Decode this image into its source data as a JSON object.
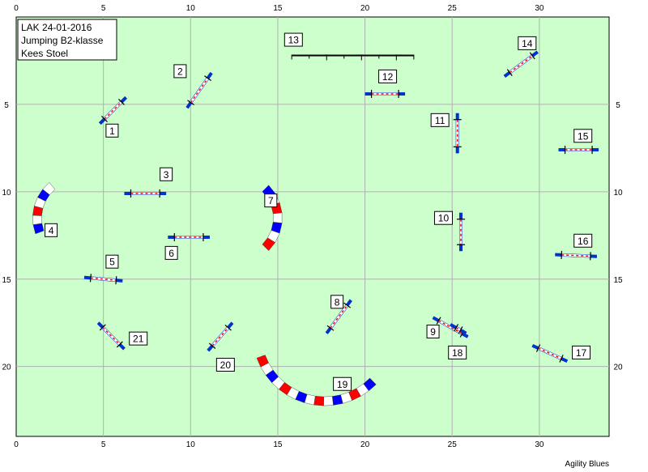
{
  "course": {
    "info_lines": [
      "LAK 24-01-2016",
      "Jumping B2-klasse",
      "Kees Stoel"
    ],
    "footer": "Agility Blues",
    "x_ticks": [
      0,
      5,
      10,
      15,
      20,
      25,
      30
    ],
    "y_ticks": [
      5,
      10,
      15,
      20
    ],
    "x_range": [
      0,
      34
    ],
    "y_range": [
      0,
      24
    ],
    "colors": {
      "field": "#ccffcc",
      "grid": "#b0b0b0",
      "bar_blue": "#0033cc",
      "tunnel_red": "#ff0000",
      "tunnel_white": "#ffffff",
      "tunnel_blue": "#0000ff"
    }
  },
  "chart_data": {
    "type": "diagram",
    "obstacles": [
      {
        "number": "1",
        "kind": "hurdle",
        "x1": 4.8,
        "y1": 6.1,
        "x2": 6.3,
        "y2": 4.6,
        "label_x": 5.5,
        "label_y": 6.5
      },
      {
        "number": "2",
        "kind": "hurdle",
        "x1": 9.8,
        "y1": 5.2,
        "x2": 11.2,
        "y2": 3.2,
        "label_x": 9.4,
        "label_y": 3.1
      },
      {
        "number": "3",
        "kind": "hurdle",
        "x1": 6.2,
        "y1": 10.1,
        "x2": 8.6,
        "y2": 10.1,
        "label_x": 8.6,
        "label_y": 9.0
      },
      {
        "number": "4",
        "kind": "tunnel",
        "cx": 3.6,
        "cy": 11.5,
        "r": 2.4,
        "a0": 160,
        "a1": 230,
        "label_x": 2.0,
        "label_y": 12.2
      },
      {
        "number": "5",
        "kind": "hurdle",
        "x1": 3.9,
        "y1": 14.9,
        "x2": 6.1,
        "y2": 15.1,
        "label_x": 5.5,
        "label_y": 14.0
      },
      {
        "number": "6",
        "kind": "hurdle",
        "x1": 8.7,
        "y1": 12.6,
        "x2": 11.1,
        "y2": 12.6,
        "label_x": 8.9,
        "label_y": 13.5
      },
      {
        "number": "7",
        "kind": "tunnel",
        "cx": 12.6,
        "cy": 11.5,
        "r": 2.4,
        "a0": -45,
        "a1": 45,
        "label_x": 14.6,
        "label_y": 10.5
      },
      {
        "number": "8",
        "kind": "hurdle",
        "x1": 17.8,
        "y1": 18.1,
        "x2": 19.2,
        "y2": 16.2,
        "label_x": 18.4,
        "label_y": 16.3
      },
      {
        "number": "9",
        "kind": "hurdle",
        "x1": 23.9,
        "y1": 17.2,
        "x2": 25.9,
        "y2": 18.3,
        "label_x": 23.9,
        "label_y": 18.0
      },
      {
        "number": "10",
        "kind": "hurdle",
        "x1": 25.5,
        "y1": 11.2,
        "x2": 25.5,
        "y2": 13.4,
        "label_x": 24.5,
        "label_y": 11.5
      },
      {
        "number": "11",
        "kind": "hurdle",
        "x1": 25.3,
        "y1": 5.5,
        "x2": 25.3,
        "y2": 7.8,
        "label_x": 24.3,
        "label_y": 5.9
      },
      {
        "number": "12",
        "kind": "hurdle",
        "x1": 20.0,
        "y1": 4.4,
        "x2": 22.3,
        "y2": 4.4,
        "label_x": 21.3,
        "label_y": 3.4
      },
      {
        "number": "13",
        "kind": "hurdle",
        "x1": 15.8,
        "y1": 2.2,
        "x2": 22.8,
        "y2": 2.2,
        "label_x": 15.9,
        "label_y": 1.3
      },
      {
        "number": "14",
        "kind": "hurdle",
        "x1": 28.0,
        "y1": 3.4,
        "x2": 29.9,
        "y2": 2.0,
        "label_x": 29.3,
        "label_y": 1.5
      },
      {
        "number": "15",
        "kind": "hurdle",
        "x1": 31.1,
        "y1": 7.6,
        "x2": 33.4,
        "y2": 7.6,
        "label_x": 32.5,
        "label_y": 6.8
      },
      {
        "number": "16",
        "kind": "hurdle",
        "x1": 30.9,
        "y1": 13.6,
        "x2": 33.3,
        "y2": 13.7,
        "label_x": 32.5,
        "label_y": 12.8
      },
      {
        "number": "17",
        "kind": "hurdle",
        "x1": 29.6,
        "y1": 18.8,
        "x2": 31.6,
        "y2": 19.7,
        "label_x": 32.4,
        "label_y": 19.2
      },
      {
        "number": "18",
        "kind": "hurdle",
        "x1": 24.9,
        "y1": 17.6,
        "x2": 25.8,
        "y2": 18.1,
        "label_x": 25.3,
        "label_y": 19.2
      },
      {
        "number": "19",
        "kind": "tunnel",
        "cx": 17.7,
        "cy": 18.1,
        "r": 3.9,
        "a0": 45,
        "a1": 160,
        "label_x": 18.7,
        "label_y": 21.0
      },
      {
        "number": "20",
        "kind": "hurdle",
        "x1": 11.0,
        "y1": 19.1,
        "x2": 12.4,
        "y2": 17.5,
        "label_x": 12.0,
        "label_y": 19.9
      },
      {
        "number": "21",
        "kind": "hurdle",
        "x1": 4.7,
        "y1": 17.5,
        "x2": 6.2,
        "y2": 19.0,
        "label_x": 7.0,
        "label_y": 18.4
      }
    ]
  }
}
